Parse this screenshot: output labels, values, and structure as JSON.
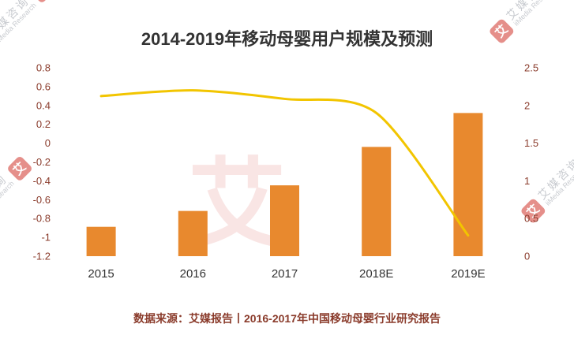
{
  "title": "2014-2019年移动母婴用户规模及预测",
  "footer": "数据来源：艾媒报告丨2016-2017年中国移动母婴行业研究报告",
  "watermark": {
    "logo_char": "艾",
    "brand_cn": "艾媒咨询",
    "brand_en": "iiMedia Research"
  },
  "colors": {
    "bar": "#E8892E",
    "line": "#F2C500",
    "y_axis_label": "#8A3B2B",
    "x_axis_label": "#333333",
    "title": "#333333",
    "footer": "#8A3B2B",
    "watermark_red": "#D0342C",
    "watermark_gray": "#9A9FA8"
  },
  "chart_data": {
    "type": "bar+line",
    "title": "2014-2019年移动母婴用户规模及预测",
    "categories": [
      "2015",
      "2016",
      "2017",
      "2018E",
      "2019E"
    ],
    "series": [
      {
        "name": "bar_series",
        "type": "bar",
        "axis": "right",
        "values": [
          0.39,
          0.6,
          0.94,
          1.45,
          1.9
        ]
      },
      {
        "name": "line_series",
        "type": "line",
        "axis": "left",
        "values": [
          0.5,
          0.56,
          0.47,
          0.32,
          -0.98
        ]
      }
    ],
    "left_axis": {
      "min": -1.2,
      "max": 0.8,
      "ticks": [
        0.8,
        0.6,
        0.4,
        0.2,
        0,
        -0.2,
        -0.4,
        -0.6,
        -0.8,
        -1,
        -1.2
      ]
    },
    "right_axis": {
      "min": 0,
      "max": 2.5,
      "ticks": [
        2.5,
        2,
        1.5,
        1,
        0.5,
        0
      ]
    },
    "grid": false,
    "legend": false
  }
}
